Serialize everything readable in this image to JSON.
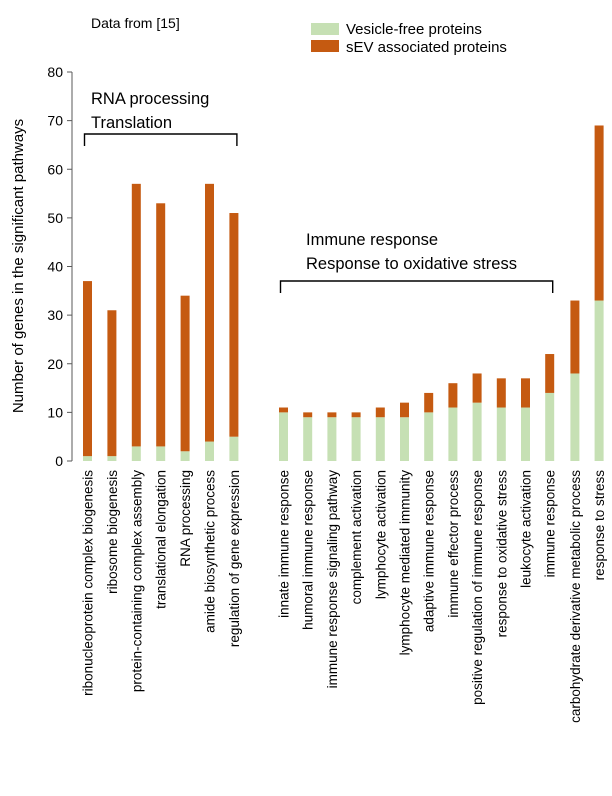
{
  "source_note": "Data from [15]",
  "colors": {
    "vesicle_free": "#c6e0b4",
    "sev": "#c55a11",
    "axis": "#595959"
  },
  "chart_data": {
    "type": "bar",
    "stacked": true,
    "title": "",
    "xlabel": "",
    "ylabel": "Number of genes in the significant pathways",
    "ylim": [
      0,
      80
    ],
    "yticks": [
      0,
      10,
      20,
      30,
      40,
      50,
      60,
      70,
      80
    ],
    "grid": false,
    "legend_position": "top-right",
    "categories": [
      "ribonucleoprotein complex biogenesis",
      "ribosome biogenesis",
      "protein-containing complex assembly",
      "translational elongation",
      "RNA processing",
      "amide biosynthetic process",
      "regulation of gene expression",
      "innate immune response",
      "humoral immune response",
      "immune response signaling pathway",
      "complement activation",
      "lymphocyte activation",
      "lymphocyte mediated immunity",
      "adaptive immune response",
      "immune effector process",
      "positive regulation of immune response",
      "response to oxidative stress",
      "leukocyte activation",
      "immune response",
      "carbohydrate derivative metabolic process",
      "response to stress"
    ],
    "series": [
      {
        "name": "Vesicle-free proteins",
        "values": [
          1,
          1,
          3,
          3,
          2,
          4,
          5,
          10,
          9,
          9,
          9,
          9,
          9,
          10,
          11,
          12,
          11,
          11,
          14,
          18,
          33
        ]
      },
      {
        "name": "sEV associated proteins",
        "values": [
          36,
          30,
          54,
          50,
          32,
          53,
          46,
          1,
          1,
          1,
          1,
          2,
          3,
          4,
          5,
          6,
          6,
          6,
          8,
          15,
          36
        ]
      }
    ],
    "annotations": [
      {
        "lines": [
          "RNA processing",
          "Translation"
        ],
        "from_index": 0,
        "to_index": 6
      },
      {
        "lines": [
          "Immune response",
          "Response to oxidative stress"
        ],
        "from_index": 7,
        "to_index": 18
      }
    ]
  }
}
